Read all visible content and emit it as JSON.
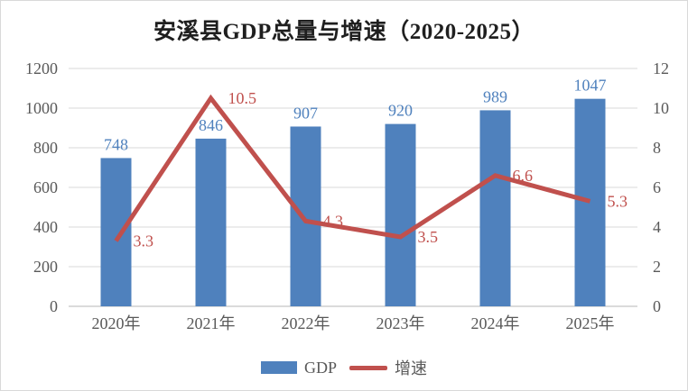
{
  "chart_data": {
    "type": "bar",
    "subtype": "bar+line-combo",
    "title": "安溪县GDP总量与增速（2020-2025）",
    "categories": [
      "2020年",
      "2021年",
      "2022年",
      "2023年",
      "2024年",
      "2025年"
    ],
    "series": [
      {
        "name": "GDP",
        "type": "bar",
        "axis": "left",
        "values": [
          748,
          846,
          907,
          920,
          989,
          1047
        ],
        "color": "#4F81BD",
        "labels": [
          "748",
          "846",
          "907",
          "920",
          "989",
          "1047"
        ]
      },
      {
        "name": "增速",
        "type": "line",
        "axis": "right",
        "values": [
          3.3,
          10.5,
          4.3,
          3.5,
          6.6,
          5.3
        ],
        "color": "#C0504D",
        "labels": [
          "3.3",
          "10.5",
          "4.3",
          "3.5",
          "6.6",
          "5.3"
        ]
      }
    ],
    "left_axis": {
      "min": 0,
      "max": 1200,
      "step": 200,
      "ticks": [
        "0",
        "200",
        "400",
        "600",
        "800",
        "1000",
        "1200"
      ]
    },
    "right_axis": {
      "min": 0,
      "max": 12,
      "step": 2,
      "ticks": [
        "0",
        "2",
        "4",
        "6",
        "8",
        "10",
        "12"
      ]
    },
    "grid": true,
    "legend_position": "bottom",
    "colors": {
      "bar": "#4F81BD",
      "line": "#C0504D",
      "axis_text": "#595959",
      "grid": "#D9D9D9",
      "axis_line": "#CFCFCF",
      "title": "#1F1F1F",
      "background": "#FFFFFF",
      "border": "#D9D9D9"
    }
  }
}
